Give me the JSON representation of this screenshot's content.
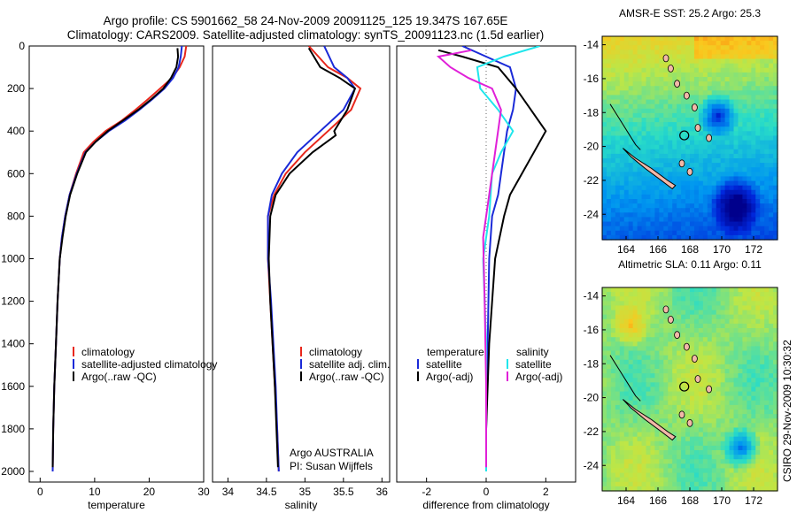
{
  "header": {
    "line1": "Argo profile: CS 5901662_58 24-Nov-2009 20091125_125 19.347S 167.65E",
    "line2": "Climatology: CARS2009. Satellite-adjusted climatology: synTS_20091123.nc (1.5d earlier)"
  },
  "colors": {
    "climatology": "#e8271c",
    "satellite": "#1a2ad8",
    "argo": "#000000",
    "argo_adj_sal": "#e020d8",
    "satellite_sal": "#20e6ec"
  },
  "chart_data": [
    {
      "type": "line",
      "id": "temperature",
      "xlabel": "temperature",
      "ylabel": "",
      "xlim": [
        -2,
        30
      ],
      "ylim": [
        2050,
        0
      ],
      "xticks": [
        0,
        10,
        20,
        30
      ],
      "yticks": [
        0,
        200,
        400,
        600,
        800,
        1000,
        1200,
        1400,
        1600,
        1800,
        2000
      ],
      "legend": [
        "climatology",
        "satellite-adjusted climatology",
        "Argo(..raw -QC)"
      ],
      "legend_placement": "lower-right",
      "series": [
        {
          "name": "climatology",
          "color": "#e8271c",
          "x": [
            26.8,
            26.5,
            25.6,
            24.2,
            22.0,
            19.8,
            17.5,
            15.0,
            12.0,
            9.8,
            8.0,
            6.6,
            5.4,
            4.6,
            4.0,
            3.6,
            3.2,
            2.9,
            2.6,
            2.4,
            2.3
          ],
          "y": [
            0,
            50,
            100,
            150,
            200,
            250,
            300,
            350,
            400,
            450,
            500,
            600,
            700,
            800,
            900,
            1000,
            1200,
            1400,
            1600,
            1800,
            2000
          ]
        },
        {
          "name": "satellite-adjusted climatology",
          "color": "#1a2ad8",
          "x": [
            26.0,
            25.8,
            25.4,
            24.4,
            22.8,
            20.6,
            18.2,
            15.6,
            12.6,
            10.2,
            8.3,
            6.7,
            5.4,
            4.6,
            4.0,
            3.6,
            3.2,
            2.9,
            2.6,
            2.4,
            2.3
          ],
          "y": [
            0,
            50,
            100,
            150,
            200,
            250,
            300,
            350,
            400,
            450,
            500,
            600,
            700,
            800,
            900,
            1000,
            1200,
            1400,
            1600,
            1800,
            2000
          ]
        },
        {
          "name": "Argo(..raw -QC)",
          "color": "#000000",
          "x": [
            25.2,
            25.3,
            25.0,
            24.0,
            22.6,
            20.4,
            18.0,
            15.2,
            12.4,
            10.2,
            8.4,
            6.8,
            5.5,
            4.7,
            4.1,
            3.6,
            3.2,
            2.9,
            2.6,
            2.4,
            2.3
          ],
          "y": [
            10,
            50,
            100,
            150,
            200,
            250,
            300,
            350,
            400,
            450,
            500,
            600,
            700,
            800,
            900,
            1000,
            1200,
            1400,
            1600,
            1800,
            1980
          ]
        }
      ]
    },
    {
      "type": "line",
      "id": "salinity",
      "xlabel": "salinity",
      "ylabel": "",
      "xlim": [
        33.8,
        36.1
      ],
      "ylim": [
        2050,
        0
      ],
      "xticks": [
        34,
        34.5,
        35,
        35.5,
        36
      ],
      "yticks": [],
      "legend": [
        "climatology",
        "satellite adj. clim.",
        "Argo(..raw -QC)"
      ],
      "legend_placement": "lower-right",
      "annotations": [
        "Argo AUSTRALIA",
        "PI: Susan Wijffels"
      ],
      "series": [
        {
          "name": "climatology",
          "color": "#e8271c",
          "x": [
            35.05,
            35.3,
            35.55,
            35.72,
            35.6,
            35.3,
            35.0,
            34.75,
            34.6,
            34.52,
            34.52,
            34.55,
            34.58,
            34.61,
            34.64,
            34.66
          ],
          "y": [
            0,
            100,
            150,
            200,
            300,
            400,
            500,
            600,
            700,
            800,
            1000,
            1200,
            1400,
            1600,
            1800,
            2000
          ]
        },
        {
          "name": "satellite adj. clim.",
          "color": "#1a2ad8",
          "x": [
            35.25,
            35.38,
            35.55,
            35.65,
            35.5,
            35.2,
            34.9,
            34.7,
            34.57,
            34.52,
            34.52,
            34.56,
            34.59,
            34.62,
            34.64,
            34.66
          ],
          "y": [
            0,
            100,
            150,
            200,
            300,
            400,
            500,
            600,
            700,
            800,
            1000,
            1200,
            1400,
            1600,
            1800,
            2000
          ]
        },
        {
          "name": "Argo(..raw -QC)",
          "color": "#000000",
          "x": [
            35.05,
            35.2,
            35.45,
            35.65,
            35.55,
            35.38,
            35.4,
            35.1,
            34.8,
            34.62,
            34.55,
            34.53,
            34.55,
            34.58,
            34.61,
            34.63,
            34.65
          ],
          "y": [
            10,
            100,
            150,
            200,
            300,
            400,
            420,
            500,
            600,
            700,
            800,
            1000,
            1200,
            1400,
            1600,
            1800,
            1980
          ]
        }
      ]
    },
    {
      "type": "line",
      "id": "difference",
      "xlabel": "difference from climatology",
      "ylabel": "",
      "xlim": [
        -3,
        3
      ],
      "ylim": [
        2050,
        0
      ],
      "xticks": [
        -2,
        0,
        2
      ],
      "yticks": [],
      "legend": [
        "temperature",
        "satellite",
        "Argo(-adj)",
        "salinity",
        "satellite",
        "Argo(-adj)"
      ],
      "legend_placement": "lower-center",
      "series": [
        {
          "name": "temperature satellite",
          "color": "#1a2ad8",
          "x": [
            -0.8,
            0.0,
            0.8,
            1.0,
            0.9,
            0.7,
            0.6,
            0.5,
            0.4,
            0.2,
            0.1,
            0.05,
            0.0,
            0.0
          ],
          "y": [
            0,
            50,
            100,
            200,
            300,
            400,
            500,
            600,
            700,
            800,
            1000,
            1400,
            1800,
            2000
          ]
        },
        {
          "name": "temperature Argo(-adj)",
          "color": "#000000",
          "x": [
            -1.6,
            -0.8,
            0.4,
            1.0,
            1.5,
            2.0,
            1.6,
            1.2,
            0.8,
            0.6,
            0.3,
            0.1,
            0.0,
            0.0
          ],
          "y": [
            20,
            50,
            100,
            200,
            300,
            400,
            500,
            600,
            700,
            800,
            1000,
            1400,
            1800,
            1980
          ]
        },
        {
          "name": "salinity satellite",
          "color": "#20e6ec",
          "x": [
            1.8,
            0.6,
            -0.3,
            -0.2,
            0.4,
            0.9,
            0.5,
            0.2,
            0.1,
            -0.1,
            0.0,
            0.0
          ],
          "y": [
            0,
            50,
            100,
            200,
            300,
            400,
            500,
            600,
            800,
            1000,
            1400,
            2000
          ]
        },
        {
          "name": "salinity Argo(-adj)",
          "color": "#e020d8",
          "x": [
            -0.5,
            -1.6,
            -1.2,
            -0.6,
            0.2,
            0.5,
            0.3,
            0.1,
            -0.1,
            -0.05,
            0.0,
            0.0
          ],
          "y": [
            20,
            50,
            100,
            150,
            200,
            300,
            500,
            700,
            900,
            1200,
            1600,
            1980
          ]
        }
      ]
    },
    {
      "type": "heatmap",
      "id": "sst-map",
      "title": "AMSR-E SST: 25.2  Argo: 25.3",
      "xlim": [
        162.5,
        173.5
      ],
      "ylim": [
        -25.5,
        -13.5
      ],
      "xticks": [
        164,
        166,
        168,
        170,
        172
      ],
      "yticks": [
        -14,
        -16,
        -18,
        -20,
        -22,
        -24
      ]
    },
    {
      "type": "heatmap",
      "id": "sla-map",
      "title": "Altimetric SLA: 0.11  Argo: 0.11",
      "xlim": [
        162.5,
        173.5
      ],
      "ylim": [
        -25.5,
        -13.5
      ],
      "xticks": [
        164,
        166,
        168,
        170,
        172
      ],
      "yticks": [
        -14,
        -16,
        -18,
        -20,
        -22,
        -24
      ]
    }
  ],
  "footer": {
    "credit": "CSIRO 29-Nov-2009 10:30:32"
  }
}
